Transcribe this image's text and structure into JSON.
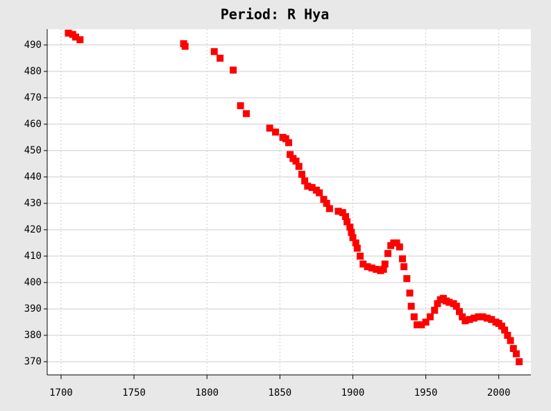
{
  "chart_data": {
    "type": "scatter",
    "title": "Period: R Hya",
    "color": "#ff0000",
    "grid": true,
    "x": [
      1705,
      1708,
      1710,
      1713,
      1784,
      1785,
      1805,
      1809,
      1818,
      1823,
      1827,
      1843,
      1847,
      1852,
      1854,
      1856,
      1857,
      1859,
      1861,
      1863,
      1865,
      1867,
      1869,
      1872,
      1875,
      1877,
      1880,
      1882,
      1884,
      1890,
      1893,
      1895,
      1896,
      1898,
      1899,
      1900,
      1902,
      1903,
      1905,
      1907,
      1910,
      1913,
      1916,
      1919,
      1921,
      1922,
      1924,
      1926,
      1928,
      1930,
      1932,
      1934,
      1935,
      1937,
      1939,
      1940,
      1942,
      1944,
      1947,
      1950,
      1953,
      1956,
      1958,
      1960,
      1962,
      1964,
      1966,
      1969,
      1971,
      1973,
      1975,
      1977,
      1980,
      1983,
      1986,
      1989,
      1992,
      1995,
      1998,
      2000,
      2002,
      2004,
      2006,
      2008,
      2010,
      2012,
      2014
    ],
    "values": [
      494.5,
      494,
      493,
      492,
      490.5,
      489.5,
      487.5,
      485,
      480.5,
      467,
      464,
      458.5,
      457,
      455,
      454.5,
      453,
      448.5,
      447,
      446,
      444,
      441,
      438.5,
      436.5,
      436,
      435,
      434,
      431.5,
      430,
      428,
      427,
      426.5,
      425,
      423,
      421,
      419,
      417,
      415,
      413,
      410,
      407,
      406,
      405.5,
      405,
      404.5,
      405,
      407,
      411,
      414,
      415,
      415,
      413.5,
      409,
      406,
      401.5,
      396,
      391,
      387,
      384,
      384,
      385,
      387,
      389.5,
      392,
      393.5,
      394,
      393,
      392.5,
      392,
      391,
      389,
      387,
      385.5,
      386,
      386.5,
      387,
      387,
      386.5,
      386,
      385,
      384.5,
      383.5,
      382,
      380,
      378,
      375,
      373,
      370
    ],
    "xlim": [
      1690.5,
      2022
    ],
    "xticks": [
      1700,
      1750,
      1800,
      1850,
      1900,
      1950,
      2000
    ],
    "ylim": [
      365,
      496
    ],
    "yticks": [
      370,
      380,
      390,
      400,
      410,
      420,
      430,
      440,
      450,
      460,
      470,
      480,
      490
    ]
  }
}
